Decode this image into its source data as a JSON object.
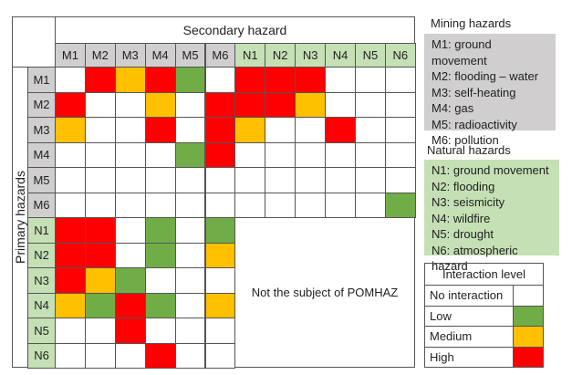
{
  "matrix": {
    "column_header": "Secondary hazard",
    "row_header": "Primary hazards",
    "columns": [
      "M1",
      "M2",
      "M3",
      "M4",
      "M5",
      "M6",
      "N1",
      "N2",
      "N3",
      "N4",
      "N5",
      "N6"
    ],
    "rows": [
      "M1",
      "M2",
      "M3",
      "M4",
      "M5",
      "M6",
      "N1",
      "N2",
      "N3",
      "N4",
      "N5",
      "N6"
    ],
    "levels": [
      [
        0,
        3,
        2,
        3,
        1,
        0,
        3,
        3,
        3,
        0,
        0,
        0
      ],
      [
        3,
        0,
        0,
        2,
        0,
        3,
        3,
        3,
        2,
        0,
        0,
        0
      ],
      [
        2,
        0,
        0,
        3,
        0,
        3,
        2,
        0,
        0,
        3,
        0,
        0
      ],
      [
        0,
        0,
        0,
        0,
        1,
        3,
        0,
        0,
        0,
        0,
        0,
        0
      ],
      [
        0,
        0,
        0,
        0,
        0,
        0,
        0,
        0,
        0,
        0,
        0,
        0
      ],
      [
        0,
        0,
        0,
        0,
        0,
        0,
        0,
        0,
        0,
        0,
        0,
        1
      ],
      [
        3,
        3,
        0,
        1,
        0,
        1
      ],
      [
        3,
        3,
        0,
        1,
        0,
        2
      ],
      [
        3,
        2,
        1,
        0,
        0,
        0
      ],
      [
        2,
        1,
        3,
        1,
        0,
        2
      ],
      [
        0,
        0,
        3,
        0,
        0,
        0
      ],
      [
        0,
        0,
        0,
        3,
        0,
        0
      ]
    ],
    "excluded_note": "Not the subject of POMHAZ"
  },
  "legend": {
    "mining_title": "Mining hazards",
    "mining": [
      "M1: ground movement",
      "M2: flooding – water",
      "M3: self-heating",
      "M4: gas",
      "M5: radioactivity",
      "M6: pollution"
    ],
    "natural_title": "Natural hazards",
    "natural": [
      "N1: ground movement",
      "N2: flooding",
      "N3: seismicity",
      "N4: wildfire",
      "N5: drought",
      "N6: atmospheric hazard"
    ],
    "interaction_title": "Interaction level",
    "interaction_levels": [
      "No interaction",
      "Low",
      "Medium",
      "High"
    ]
  },
  "colors": {
    "level": [
      "#ffffff",
      "#70ad47",
      "#ffc000",
      "#ff0000"
    ],
    "mining": "#d0cece",
    "natural": "#c5e0b4"
  }
}
